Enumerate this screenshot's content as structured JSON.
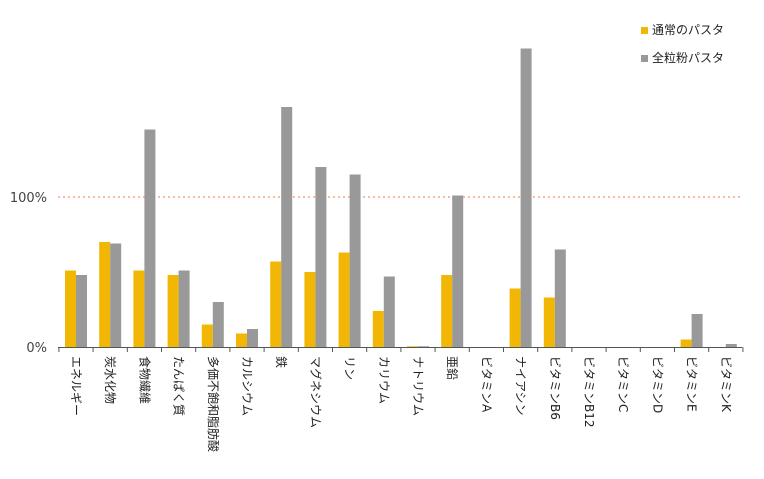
{
  "chart_data": {
    "type": "bar",
    "categories": [
      "エネルギー",
      "炭水化物",
      "食物繊維",
      "たんぱく質",
      "多価不飽和脂肪酸",
      "カルシウム",
      "鉄",
      "マグネシウム",
      "リン",
      "カリウム",
      "ナトリウム",
      "亜鉛",
      "ビタミンA",
      "ナイアシン",
      "ビタミンB6",
      "ビタミンB12",
      "ビタミンC",
      "ビタミンD",
      "ビタミンE",
      "ビタミンK"
    ],
    "series": [
      {
        "name": "通常のパスタ",
        "color": "#f2b705",
        "values": [
          51,
          70,
          51,
          48,
          15,
          9,
          57,
          50,
          63,
          24,
          0.5,
          48,
          0,
          39,
          33,
          0,
          0,
          0,
          5,
          0
        ]
      },
      {
        "name": "全粒粉パスタ",
        "color": "#999999",
        "values": [
          48,
          69,
          145,
          51,
          30,
          12,
          160,
          120,
          115,
          47,
          0.5,
          101,
          0,
          199,
          65,
          0,
          0,
          0,
          22,
          2
        ]
      }
    ],
    "y_ticks": [
      {
        "value": 0,
        "label": "0%"
      },
      {
        "value": 100,
        "label": "100%"
      }
    ],
    "reference_line": {
      "value": 100,
      "color": "#f4a582",
      "style": "dotted"
    },
    "ylim": [
      0,
      205
    ],
    "grid": false,
    "legend_position": "top-right",
    "title": "",
    "xlabel": "",
    "ylabel": ""
  }
}
